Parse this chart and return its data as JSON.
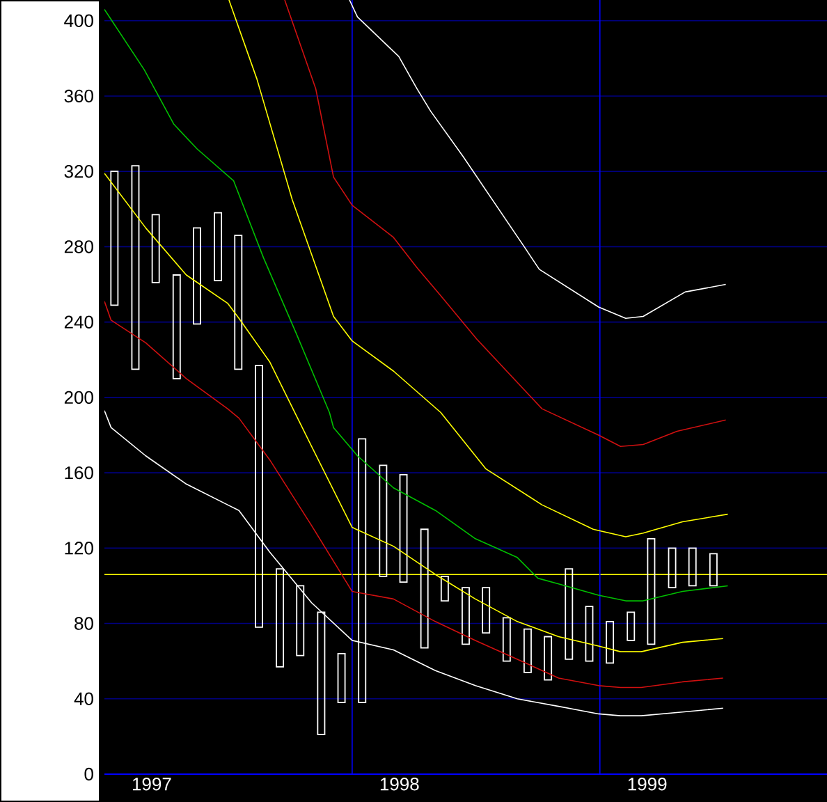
{
  "chart_data": {
    "type": "bar",
    "x": [
      "1997-01-16",
      "1997-02-15",
      "1997-03-16",
      "1997-04-16",
      "1997-05-16",
      "1997-06-16",
      "1997-07-16",
      "1997-08-16",
      "1997-09-16",
      "1997-10-16",
      "1997-11-16",
      "1997-12-16",
      "1998-01-16",
      "1998-02-15",
      "1998-03-16",
      "1998-04-16",
      "1998-05-16",
      "1998-06-16",
      "1998-07-16",
      "1998-08-16",
      "1998-09-16",
      "1998-10-16",
      "1998-11-16",
      "1998-12-16",
      "1999-01-16",
      "1999-02-15",
      "1999-03-16",
      "1999-04-16",
      "1999-05-16",
      "1999-06-16"
    ],
    "series": [
      {
        "color": "#ffffff",
        "base": [
          249,
          215,
          261,
          210,
          239,
          262,
          215,
          78,
          57,
          63,
          21,
          38,
          38,
          105,
          102,
          67,
          92,
          69,
          75,
          60,
          54,
          50,
          61,
          60,
          59,
          71,
          69,
          99,
          100,
          100
        ],
        "values": [
          71,
          108,
          36,
          55,
          51,
          36,
          71,
          139,
          52,
          37,
          65,
          26,
          140,
          59,
          57,
          63,
          13,
          30,
          24,
          23,
          23,
          23,
          48,
          29,
          22,
          15,
          56,
          21,
          20,
          17
        ]
      },
      {
        "type": "line",
        "color": "#ffffff",
        "x": [
          "1997-01-01",
          "1997-01-11",
          "1997-03-01",
          "1997-04-30",
          "1997-06-30",
          "1997-07-17",
          "1997-09-01",
          "1997-11-02",
          "1998-01-01",
          "1998-03-01",
          "1998-05-02",
          "1998-06-30",
          "1998-09-01",
          "1998-11-01",
          "1998-12-30",
          "1999-02-01",
          "1999-03-01",
          "1999-05-01",
          "1999-06-30"
        ],
        "values": [
          193,
          184,
          169,
          154,
          143,
          140,
          118,
          91,
          71,
          66,
          55,
          47,
          40,
          36,
          32,
          31,
          31,
          33,
          35
        ]
      },
      {
        "type": "line",
        "color": "#d01010",
        "x": [
          "1997-01-01",
          "1997-01-11",
          "1997-03-01",
          "1997-04-30",
          "1997-06-30",
          "1997-07-17",
          "1997-09-01",
          "1997-11-02",
          "1998-01-01",
          "1998-03-01",
          "1998-05-02",
          "1998-06-30",
          "1998-09-01",
          "1998-11-01",
          "1998-12-30",
          "1999-02-01",
          "1999-03-01",
          "1999-05-01",
          "1999-06-30"
        ],
        "values": [
          251,
          241,
          229,
          210,
          194,
          189,
          167,
          132,
          97,
          93,
          81,
          71,
          61,
          51,
          47,
          46,
          46,
          49,
          51
        ]
      },
      {
        "type": "line",
        "color": "#ffff00",
        "x": [
          "1997-01-01",
          "1997-03-01",
          "1997-04-30",
          "1997-06-30",
          "1997-07-17",
          "1997-09-01",
          "1997-11-02",
          "1998-01-01",
          "1998-03-01",
          "1998-05-02",
          "1998-06-30",
          "1998-09-01",
          "1998-11-01",
          "1998-12-30",
          "1999-02-01",
          "1999-03-01",
          "1999-05-01",
          "1999-06-30"
        ],
        "values": [
          319,
          290,
          265,
          250,
          242,
          219,
          174,
          131,
          121,
          106,
          93,
          81,
          73,
          68,
          65,
          65,
          70,
          72
        ]
      },
      {
        "type": "line",
        "color": "#00c000",
        "x": [
          "1997-01-01",
          "1997-02-27",
          "1997-04-12",
          "1997-05-16",
          "1997-07-09",
          "1997-08-23",
          "1997-10-10",
          "1997-11-28",
          "1997-12-04",
          "1998-01-09",
          "1998-03-01",
          "1998-05-02",
          "1998-06-30",
          "1998-09-01",
          "1998-10-01",
          "1998-11-01",
          "1998-12-30",
          "1999-02-08",
          "1999-03-04",
          "1999-05-01",
          "1999-07-07"
        ],
        "values": [
          406,
          374,
          345,
          332,
          315,
          274,
          234,
          192,
          184,
          169,
          152,
          140,
          125,
          115,
          104,
          101,
          95,
          92,
          92,
          97,
          100
        ]
      },
      {
        "type": "line",
        "color": "#ffff00",
        "x": [
          "1997-07-02",
          "1997-08-13",
          "1997-10-04",
          "1997-12-04",
          "1998-01-01",
          "1998-03-01",
          "1998-05-10",
          "1998-07-16",
          "1998-10-07",
          "1998-12-22",
          "1999-02-08",
          "1999-03-04",
          "1999-05-01",
          "1999-07-07"
        ],
        "values": [
          411,
          369,
          305,
          243,
          230,
          214,
          192,
          162,
          143,
          130,
          126,
          128,
          134,
          138
        ]
      },
      {
        "type": "line",
        "color": "#d01010",
        "x": [
          "1997-09-23",
          "1997-11-08",
          "1997-12-04",
          "1998-01-01",
          "1998-03-01",
          "1998-04-05",
          "1998-05-10",
          "1998-07-02",
          "1998-10-07",
          "1998-12-30",
          "1999-02-01",
          "1999-03-04",
          "1999-04-23",
          "1999-07-04"
        ],
        "values": [
          411,
          364,
          317,
          302,
          285,
          269,
          254,
          231,
          194,
          180,
          174,
          175,
          182,
          188
        ]
      },
      {
        "type": "line",
        "color": "#ffffff",
        "x": [
          "1997-12-28",
          "1998-01-09",
          "1998-03-09",
          "1998-04-05",
          "1998-04-25",
          "1998-06-12",
          "1998-09-11",
          "1998-10-03",
          "1998-12-30",
          "1999-02-08",
          "1999-03-04",
          "1999-05-05",
          "1999-07-04"
        ],
        "values": [
          411,
          402,
          381,
          364,
          352,
          328,
          280,
          268,
          248,
          242,
          243,
          256,
          260
        ]
      }
    ],
    "xlim": [
      "1997-01-01",
      "1999-12-01"
    ],
    "xticks": [
      {
        "value": "1997-03-10",
        "label": "1997"
      },
      {
        "value": "1998-03-10",
        "label": "1998"
      },
      {
        "value": "1999-03-10",
        "label": "1999"
      }
    ],
    "ylim": [
      0,
      411
    ],
    "yticks": [
      0,
      40,
      80,
      120,
      160,
      200,
      240,
      280,
      320,
      360,
      400
    ],
    "grid": "y",
    "ref_lines": [
      {
        "axis": "y",
        "value": 106,
        "color": "#ffff00"
      },
      {
        "axis": "x",
        "value": "1998-01-01",
        "color": "#0000ff"
      },
      {
        "axis": "x",
        "value": "1999-01-01",
        "color": "#0000ff"
      }
    ]
  }
}
